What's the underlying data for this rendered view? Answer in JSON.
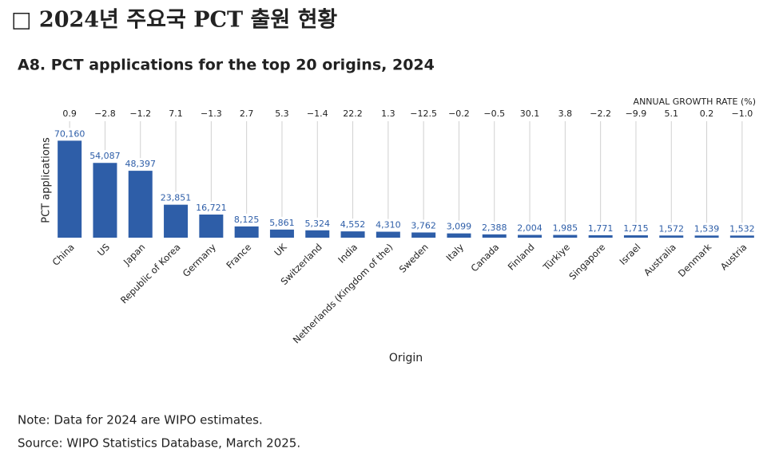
{
  "heading": "□ 2024년 주요국 PCT 출원 현황",
  "chart_data": {
    "type": "bar",
    "title": "A8. PCT applications for the top 20 origins, 2024",
    "x_label": "Origin",
    "y_label": "PCT applications",
    "categories": [
      "China",
      "US",
      "Japan",
      "Republic of Korea",
      "Germany",
      "France",
      "UK",
      "Switzerland",
      "India",
      "Netherlands (Kingdom of the)",
      "Sweden",
      "Italy",
      "Canada",
      "Finland",
      "Türkiye",
      "Singapore",
      "Israel",
      "Australia",
      "Denmark",
      "Austria"
    ],
    "values": [
      70160,
      54087,
      48397,
      23851,
      16721,
      8125,
      5861,
      5324,
      4552,
      4310,
      3762,
      3099,
      2388,
      2004,
      1985,
      1771,
      1715,
      1572,
      1539,
      1532
    ],
    "value_labels": [
      "70,160",
      "54,087",
      "48,397",
      "23,851",
      "16,721",
      "8,125",
      "5,861",
      "5,324",
      "4,552",
      "4,310",
      "3,762",
      "3,099",
      "2,388",
      "2,004",
      "1,985",
      "1,771",
      "1,715",
      "1,572",
      "1,539",
      "1,532"
    ],
    "color": "#2e5ea8",
    "ylim": [
      0,
      75000
    ],
    "growth_rate": {
      "label": "ANNUAL GROWTH RATE (%)",
      "values": [
        0.9,
        -2.8,
        -1.2,
        7.1,
        -1.3,
        2.7,
        5.3,
        -1.4,
        22.2,
        1.3,
        -12.5,
        -0.2,
        -0.5,
        30.1,
        3.8,
        -2.2,
        -9.9,
        5.1,
        0.2,
        -1.0
      ],
      "value_labels": [
        "0.9",
        "−2.8",
        "−1.2",
        "7.1",
        "−1.3",
        "2.7",
        "5.3",
        "−1.4",
        "22.2",
        "1.3",
        "−12.5",
        "−0.2",
        "−0.5",
        "30.1",
        "3.8",
        "−2.2",
        "−9.9",
        "5.1",
        "0.2",
        "−1.0"
      ]
    },
    "notes": [
      "Note: Data for 2024 are WIPO estimates.",
      "Source: WIPO Statistics Database, March 2025."
    ]
  }
}
